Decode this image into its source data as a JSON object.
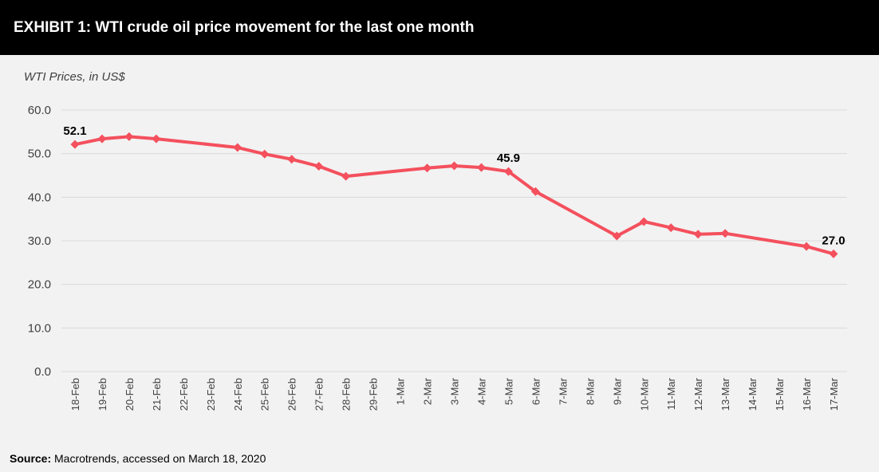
{
  "header": {
    "title": "EXHIBIT 1: WTI crude oil price movement for the last one month"
  },
  "source": {
    "label": "Source:",
    "text": " Macrotrends, accessed on March 18, 2020"
  },
  "colors": {
    "line": "#f4505d",
    "grid": "#d9d9d9",
    "header_bg": "#000000"
  },
  "chart_data": {
    "type": "line",
    "title": "",
    "ylabel": "WTI Prices, in US$",
    "xlabel": "",
    "ylim": [
      0,
      60
    ],
    "yticks": [
      "0.0",
      "10.0",
      "20.0",
      "30.0",
      "40.0",
      "50.0",
      "60.0"
    ],
    "grid": true,
    "legend": "none",
    "categories": [
      "18-Feb",
      "19-Feb",
      "20-Feb",
      "21-Feb",
      "22-Feb",
      "23-Feb",
      "24-Feb",
      "25-Feb",
      "26-Feb",
      "27-Feb",
      "28-Feb",
      "29-Feb",
      "1-Mar",
      "2-Mar",
      "3-Mar",
      "4-Mar",
      "5-Mar",
      "6-Mar",
      "7-Mar",
      "8-Mar",
      "9-Mar",
      "10-Mar",
      "11-Mar",
      "12-Mar",
      "13-Mar",
      "14-Mar",
      "15-Mar",
      "16-Mar",
      "17-Mar"
    ],
    "values": [
      52.1,
      53.4,
      53.9,
      53.4,
      null,
      null,
      51.4,
      49.9,
      48.7,
      47.1,
      44.8,
      null,
      null,
      46.7,
      47.2,
      46.8,
      45.9,
      41.3,
      null,
      null,
      31.1,
      34.4,
      33.0,
      31.5,
      31.7,
      null,
      null,
      28.7,
      27.0
    ],
    "data_labels": [
      {
        "index": 0,
        "text": "52.1"
      },
      {
        "index": 16,
        "text": "45.9"
      },
      {
        "index": 28,
        "text": "27.0"
      }
    ]
  }
}
